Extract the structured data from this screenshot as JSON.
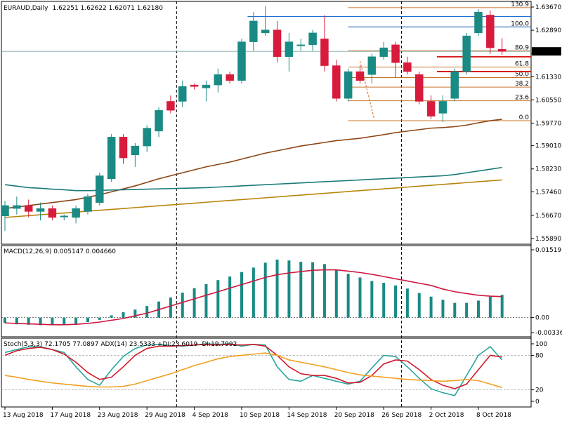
{
  "chart_data": [
    {
      "type": "candlestick",
      "panel": "price",
      "symbol_label": "EURAUD,Daily",
      "ohlc_header": "1.62251 1.62622 1.62071 1.62180",
      "current_price_label": "1.62180",
      "y_ticks": [
        "1.63670",
        "1.62890",
        "1.62110",
        "1.61330",
        "1.60550",
        "1.59770",
        "1.59010",
        "1.58230",
        "1.57460",
        "1.56670",
        "1.55890"
      ],
      "ylim": [
        1.5589,
        1.6367
      ],
      "x_tick_labels": [
        "13 Aug 2018",
        "17 Aug 2018",
        "23 Aug 2018",
        "29 Aug 2018",
        "4 Sep 2018",
        "10 Sep 2018",
        "14 Sep 2018",
        "20 Sep 2018",
        "26 Sep 2018",
        "2 Oct 2018",
        "8 Oct 2018"
      ],
      "candles": [
        {
          "o": 1.5665,
          "h": 1.5715,
          "l": 1.5615,
          "c": 1.57
        },
        {
          "o": 1.569,
          "h": 1.573,
          "l": 1.567,
          "c": 1.57
        },
        {
          "o": 1.57,
          "h": 1.572,
          "l": 1.566,
          "c": 1.568
        },
        {
          "o": 1.568,
          "h": 1.571,
          "l": 1.565,
          "c": 1.569
        },
        {
          "o": 1.569,
          "h": 1.57,
          "l": 1.565,
          "c": 1.566
        },
        {
          "o": 1.5665,
          "h": 1.567,
          "l": 1.565,
          "c": 1.5665
        },
        {
          "o": 1.566,
          "h": 1.57,
          "l": 1.564,
          "c": 1.569
        },
        {
          "o": 1.568,
          "h": 1.574,
          "l": 1.567,
          "c": 1.573
        },
        {
          "o": 1.571,
          "h": 1.581,
          "l": 1.57,
          "c": 1.58
        },
        {
          "o": 1.579,
          "h": 1.594,
          "l": 1.578,
          "c": 1.593
        },
        {
          "o": 1.593,
          "h": 1.594,
          "l": 1.584,
          "c": 1.586
        },
        {
          "o": 1.587,
          "h": 1.591,
          "l": 1.583,
          "c": 1.59
        },
        {
          "o": 1.59,
          "h": 1.597,
          "l": 1.588,
          "c": 1.596
        },
        {
          "o": 1.595,
          "h": 1.603,
          "l": 1.593,
          "c": 1.602
        },
        {
          "o": 1.605,
          "h": 1.607,
          "l": 1.601,
          "c": 1.602
        },
        {
          "o": 1.605,
          "h": 1.612,
          "l": 1.603,
          "c": 1.61
        },
        {
          "o": 1.6105,
          "h": 1.611,
          "l": 1.609,
          "c": 1.61
        },
        {
          "o": 1.6095,
          "h": 1.612,
          "l": 1.605,
          "c": 1.6105
        },
        {
          "o": 1.6105,
          "h": 1.616,
          "l": 1.608,
          "c": 1.614
        },
        {
          "o": 1.614,
          "h": 1.615,
          "l": 1.611,
          "c": 1.612
        },
        {
          "o": 1.612,
          "h": 1.626,
          "l": 1.611,
          "c": 1.625
        },
        {
          "o": 1.625,
          "h": 1.635,
          "l": 1.622,
          "c": 1.632
        },
        {
          "o": 1.628,
          "h": 1.637,
          "l": 1.627,
          "c": 1.629
        },
        {
          "o": 1.629,
          "h": 1.632,
          "l": 1.618,
          "c": 1.62
        },
        {
          "o": 1.62,
          "h": 1.628,
          "l": 1.615,
          "c": 1.625
        },
        {
          "o": 1.624,
          "h": 1.626,
          "l": 1.622,
          "c": 1.624
        },
        {
          "o": 1.624,
          "h": 1.629,
          "l": 1.622,
          "c": 1.628
        },
        {
          "o": 1.626,
          "h": 1.634,
          "l": 1.615,
          "c": 1.617
        },
        {
          "o": 1.617,
          "h": 1.619,
          "l": 1.605,
          "c": 1.606
        },
        {
          "o": 1.606,
          "h": 1.616,
          "l": 1.605,
          "c": 1.615
        },
        {
          "o": 1.615,
          "h": 1.617,
          "l": 1.611,
          "c": 1.612
        },
        {
          "o": 1.614,
          "h": 1.621,
          "l": 1.611,
          "c": 1.62
        },
        {
          "o": 1.62,
          "h": 1.625,
          "l": 1.619,
          "c": 1.623
        },
        {
          "o": 1.624,
          "h": 1.625,
          "l": 1.613,
          "c": 1.618
        },
        {
          "o": 1.618,
          "h": 1.62,
          "l": 1.614,
          "c": 1.615
        },
        {
          "o": 1.614,
          "h": 1.615,
          "l": 1.604,
          "c": 1.605
        },
        {
          "o": 1.605,
          "h": 1.607,
          "l": 1.599,
          "c": 1.6
        },
        {
          "o": 1.601,
          "h": 1.607,
          "l": 1.598,
          "c": 1.605
        },
        {
          "o": 1.606,
          "h": 1.616,
          "l": 1.605,
          "c": 1.615
        },
        {
          "o": 1.615,
          "h": 1.628,
          "l": 1.614,
          "c": 1.627
        },
        {
          "o": 1.628,
          "h": 1.636,
          "l": 1.627,
          "c": 1.635
        },
        {
          "o": 1.634,
          "h": 1.6355,
          "l": 1.621,
          "c": 1.623
        },
        {
          "o": 1.6225,
          "h": 1.6262,
          "l": 1.6207,
          "c": 1.6218
        }
      ],
      "moving_averages": [
        {
          "color": "#8b4513",
          "values": [
            1.569,
            1.5695,
            1.57,
            1.5705,
            1.571,
            1.5715,
            1.572,
            1.5728,
            1.5736,
            1.5746,
            1.5756,
            1.5766,
            1.5778,
            1.579,
            1.58,
            1.581,
            1.582,
            1.583,
            1.5838,
            1.5846,
            1.5856,
            1.5866,
            1.5876,
            1.5884,
            1.5892,
            1.59,
            1.5906,
            1.5912,
            1.5918,
            1.5922,
            1.5926,
            1.5932,
            1.5938,
            1.5945,
            1.595,
            1.5955,
            1.596,
            1.5962,
            1.5965,
            1.597,
            1.5978,
            1.5985,
            1.599
          ]
        },
        {
          "color": "#1a7a78",
          "values": [
            1.577,
            1.5765,
            1.576,
            1.5758,
            1.5755,
            1.5753,
            1.575,
            1.575,
            1.5751,
            1.5752,
            1.5753,
            1.5754,
            1.5755,
            1.5756,
            1.5757,
            1.5758,
            1.5759,
            1.576,
            1.5762,
            1.5764,
            1.5766,
            1.5768,
            1.577,
            1.5772,
            1.5774,
            1.5776,
            1.5778,
            1.578,
            1.5782,
            1.5784,
            1.5786,
            1.5788,
            1.579,
            1.5792,
            1.5794,
            1.5796,
            1.5798,
            1.58,
            1.5804,
            1.581,
            1.5816,
            1.5822,
            1.5828
          ]
        },
        {
          "color": "#b8860b",
          "values": [
            1.566,
            1.5663,
            1.5666,
            1.5669,
            1.5672,
            1.5675,
            1.5678,
            1.5681,
            1.5684,
            1.5687,
            1.569,
            1.5693,
            1.5696,
            1.5699,
            1.5702,
            1.5705,
            1.5708,
            1.5711,
            1.5714,
            1.5717,
            1.572,
            1.5723,
            1.5726,
            1.5729,
            1.5732,
            1.5735,
            1.5738,
            1.5741,
            1.5744,
            1.5747,
            1.575,
            1.5753,
            1.5756,
            1.5759,
            1.5762,
            1.5765,
            1.5768,
            1.5771,
            1.5774,
            1.5777,
            1.578,
            1.5783,
            1.5786
          ]
        }
      ],
      "fibonacci": {
        "levels": [
          {
            "label": "130.9",
            "price": 1.6365
          },
          {
            "label": "100.0",
            "price": 1.63
          },
          {
            "label": "80.9",
            "price": 1.622
          },
          {
            "label": "61.8",
            "price": 1.6165
          },
          {
            "label": "50.0",
            "price": 1.613
          },
          {
            "label": "38.2",
            "price": 1.6098
          },
          {
            "label": "23.6",
            "price": 1.6052
          },
          {
            "label": "0.0",
            "price": 1.5985
          }
        ],
        "color": "#c8742a"
      },
      "horizontal_lines": [
        {
          "price": 1.6335,
          "color": "#1f6fd1"
        },
        {
          "price": 1.63,
          "color": "#1f6fd1"
        },
        {
          "price": 1.62,
          "color": "#d81b1b"
        },
        {
          "price": 1.615,
          "color": "#d81b1b"
        }
      ],
      "colors": {
        "bull": "#1a8a84",
        "bear": "#d81b3c",
        "bg": "#ffffff"
      }
    },
    {
      "type": "bar",
      "panel": "macd",
      "label": "MACD(12,26,9) 0.005147 0.004660",
      "y_ticks": [
        "0.015191",
        "0.00",
        "-0.003363"
      ],
      "ylim": [
        -0.00336,
        0.01519
      ],
      "histogram": [
        -0.0012,
        -0.0015,
        -0.0016,
        -0.0017,
        -0.0017,
        -0.0016,
        -0.0014,
        -0.001,
        -0.0005,
        0.0005,
        0.0012,
        0.0018,
        0.0026,
        0.0036,
        0.0045,
        0.0056,
        0.0066,
        0.0075,
        0.0084,
        0.0092,
        0.0102,
        0.0112,
        0.0123,
        0.013,
        0.0128,
        0.0125,
        0.0124,
        0.012,
        0.0108,
        0.0098,
        0.009,
        0.0082,
        0.0078,
        0.0072,
        0.0065,
        0.0055,
        0.0047,
        0.004,
        0.0033,
        0.0033,
        0.0038,
        0.0047,
        0.0051
      ],
      "signal": [
        -0.0012,
        -0.0013,
        -0.0014,
        -0.0015,
        -0.0016,
        -0.0016,
        -0.0015,
        -0.0013,
        -0.001,
        -0.0006,
        -0.0002,
        0.0004,
        0.001,
        0.0018,
        0.0026,
        0.0034,
        0.0042,
        0.005,
        0.0058,
        0.0066,
        0.0074,
        0.0082,
        0.009,
        0.0096,
        0.01,
        0.0103,
        0.0106,
        0.0107,
        0.0107,
        0.0104,
        0.0101,
        0.0097,
        0.0092,
        0.0087,
        0.0082,
        0.0077,
        0.0072,
        0.0064,
        0.0058,
        0.0054,
        0.005,
        0.0048,
        0.0047
      ],
      "colors": {
        "hist": "#1a8a84",
        "signal": "#cc1840"
      }
    },
    {
      "type": "line",
      "panel": "stoch_adx",
      "label": "Stoch(5,3,3) 72.1705 77.0897  ADX(14) 23.5333 +DI:23.6019 -DI:19.7992",
      "y_ticks": [
        "100",
        "80",
        "20",
        "0"
      ],
      "ylim": [
        0,
        100
      ],
      "series": [
        {
          "color": "#2aa5a0",
          "values": [
            85,
            90,
            95,
            95,
            90,
            85,
            60,
            38,
            28,
            55,
            78,
            92,
            98,
            99,
            97,
            96,
            98,
            100,
            99,
            100,
            96,
            99,
            98,
            60,
            38,
            35,
            45,
            40,
            35,
            30,
            35,
            58,
            80,
            78,
            60,
            40,
            22,
            15,
            10,
            45,
            80,
            95,
            72
          ]
        },
        {
          "color": "#d11a2a",
          "values": [
            80,
            88,
            92,
            94,
            90,
            82,
            68,
            50,
            38,
            42,
            60,
            80,
            92,
            96,
            96,
            97,
            98,
            99,
            98,
            99,
            98,
            99,
            96,
            80,
            60,
            48,
            45,
            45,
            40,
            32,
            33,
            45,
            65,
            72,
            70,
            55,
            38,
            28,
            22,
            30,
            55,
            80,
            77
          ]
        },
        {
          "color": "#f0a020",
          "values": [
            45,
            42,
            38,
            35,
            32,
            30,
            28,
            26,
            25,
            25,
            26,
            30,
            36,
            42,
            48,
            55,
            62,
            68,
            74,
            78,
            80,
            82,
            84,
            80,
            72,
            68,
            64,
            60,
            55,
            50,
            46,
            44,
            42,
            40,
            38,
            37,
            36,
            35,
            36,
            38,
            36,
            30,
            24
          ]
        }
      ]
    }
  ]
}
